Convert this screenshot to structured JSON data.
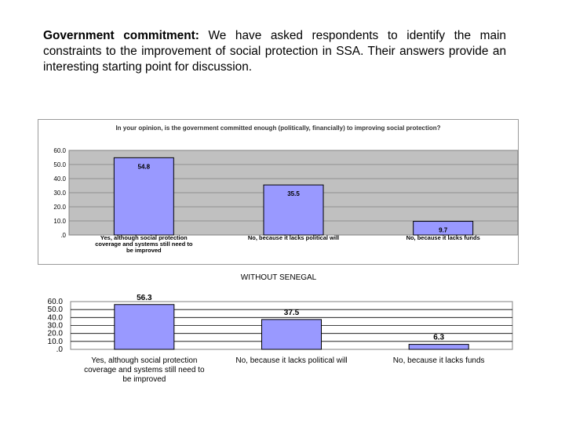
{
  "intro": {
    "lead": "Government commitment:",
    "text": " We have asked respondents to identify the main constraints to the improvement of social protection in SSA. Their answers provide an interesting starting point for discussion."
  },
  "colors": {
    "bar_fill": "#9999ff",
    "bar_stroke": "#000000",
    "plot_bg": "#c0c0c0",
    "grid": "#7f7f7f"
  },
  "chart_data": [
    {
      "type": "bar",
      "title": "In your opinion, is the government committed enough (politically, financially) to improving social protection?",
      "categories": [
        "Yes, although social protection coverage and systems still need to be improved",
        "No, because it lacks political will",
        "No, because it lacks funds"
      ],
      "values": [
        54.8,
        35.5,
        9.7
      ],
      "value_labels": [
        "54.8",
        "35.5",
        "9.7"
      ],
      "yticks": [
        "60.0",
        "50.0",
        "40.0",
        "30.0",
        "20.0",
        "10.0",
        ".0"
      ],
      "ylim": [
        0,
        60
      ],
      "grid": true
    },
    {
      "type": "bar",
      "title": "WITHOUT SENEGAL",
      "categories": [
        "Yes, although social protection coverage and systems still need to be improved",
        "No, because it lacks political will",
        "No, because it lacks funds"
      ],
      "values": [
        56.3,
        37.5,
        6.3
      ],
      "value_labels": [
        "56.3",
        "37.5",
        "6.3"
      ],
      "yticks": [
        "60.0",
        "50.0",
        "40.0",
        "30.0",
        "20.0",
        "10.0",
        ".0"
      ],
      "ylim": [
        0,
        60
      ],
      "grid": true
    }
  ]
}
